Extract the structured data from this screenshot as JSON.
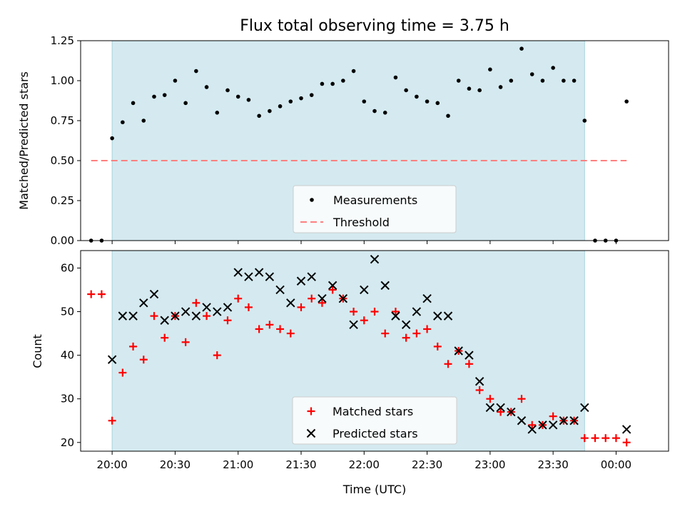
{
  "chart_data": [
    {
      "type": "scatter",
      "title": "Flux total observing time = 3.75 h",
      "xlabel": "",
      "ylabel": "Matched/Predicted stars",
      "xlim": [
        "19:45",
        "00:25"
      ],
      "ylim": [
        0,
        1.25
      ],
      "yticks": [
        "0.00",
        "0.25",
        "0.50",
        "0.75",
        "1.00",
        "1.25"
      ],
      "observing_window": [
        "20:00",
        "23:45"
      ],
      "x": [
        "19:50",
        "19:55",
        "20:00",
        "20:05",
        "20:10",
        "20:15",
        "20:20",
        "20:25",
        "20:30",
        "20:35",
        "20:40",
        "20:45",
        "20:50",
        "20:55",
        "21:00",
        "21:05",
        "21:10",
        "21:15",
        "21:20",
        "21:25",
        "21:30",
        "21:35",
        "21:40",
        "21:45",
        "21:50",
        "21:55",
        "22:00",
        "22:05",
        "22:10",
        "22:15",
        "22:20",
        "22:25",
        "22:30",
        "22:35",
        "22:40",
        "22:45",
        "22:50",
        "22:55",
        "23:00",
        "23:05",
        "23:10",
        "23:15",
        "23:20",
        "23:25",
        "23:30",
        "23:35",
        "23:40",
        "23:45",
        "23:50",
        "23:55",
        "00:00",
        "00:05"
      ],
      "series": [
        {
          "name": "Measurements",
          "color": "#000000",
          "marker": "dot",
          "values": [
            0.0,
            0.0,
            0.64,
            0.74,
            0.86,
            0.75,
            0.9,
            0.91,
            1.0,
            0.86,
            1.06,
            0.96,
            0.8,
            0.94,
            0.9,
            0.88,
            0.78,
            0.81,
            0.84,
            0.87,
            0.89,
            0.91,
            0.98,
            0.98,
            1.0,
            1.06,
            0.87,
            0.81,
            0.8,
            1.02,
            0.94,
            0.9,
            0.87,
            0.86,
            0.78,
            1.0,
            0.95,
            0.94,
            1.07,
            0.96,
            1.0,
            1.2,
            1.04,
            1.0,
            1.08,
            1.0,
            1.0,
            0.75,
            0.0,
            0.0,
            0.0,
            0.87
          ]
        },
        {
          "name": "Threshold",
          "color": "#ff7f7f",
          "style": "dashed",
          "x": [
            "19:50",
            "00:05"
          ],
          "values": [
            0.5,
            0.5
          ]
        }
      ],
      "legend": "bottom-center"
    },
    {
      "type": "scatter",
      "title": "",
      "xlabel": "Time (UTC)",
      "ylabel": "Count",
      "xlim": [
        "19:45",
        "00:25"
      ],
      "ylim": [
        18,
        64
      ],
      "yticks": [
        "20",
        "30",
        "40",
        "50",
        "60"
      ],
      "xticks": [
        "20:00",
        "20:30",
        "21:00",
        "21:30",
        "22:00",
        "22:30",
        "23:00",
        "23:30",
        "00:00"
      ],
      "observing_window": [
        "20:00",
        "23:45"
      ],
      "x": [
        "19:50",
        "19:55",
        "20:00",
        "20:05",
        "20:10",
        "20:15",
        "20:20",
        "20:25",
        "20:30",
        "20:35",
        "20:40",
        "20:45",
        "20:50",
        "20:55",
        "21:00",
        "21:05",
        "21:10",
        "21:15",
        "21:20",
        "21:25",
        "21:30",
        "21:35",
        "21:40",
        "21:45",
        "21:50",
        "21:55",
        "22:00",
        "22:05",
        "22:10",
        "22:15",
        "22:20",
        "22:25",
        "22:30",
        "22:35",
        "22:40",
        "22:45",
        "22:50",
        "22:55",
        "23:00",
        "23:05",
        "23:10",
        "23:15",
        "23:20",
        "23:25",
        "23:30",
        "23:35",
        "23:40",
        "23:45",
        "23:50",
        "23:55",
        "00:00",
        "00:05"
      ],
      "series": [
        {
          "name": "Matched stars",
          "color": "#ff0000",
          "marker": "plus",
          "values": [
            54,
            54,
            25,
            36,
            42,
            39,
            49,
            44,
            49,
            43,
            52,
            49,
            40,
            48,
            53,
            51,
            46,
            47,
            46,
            45,
            51,
            53,
            52,
            55,
            53,
            50,
            48,
            50,
            45,
            50,
            44,
            45,
            46,
            42,
            38,
            41,
            38,
            32,
            30,
            27,
            27,
            30,
            24,
            24,
            26,
            25,
            25,
            21,
            21,
            21,
            21,
            20
          ]
        },
        {
          "name": "Predicted stars",
          "color": "#000000",
          "marker": "x",
          "values": [
            null,
            null,
            39,
            49,
            49,
            52,
            54,
            48,
            49,
            50,
            49,
            51,
            50,
            51,
            59,
            58,
            59,
            58,
            55,
            52,
            57,
            58,
            53,
            56,
            53,
            47,
            55,
            62,
            56,
            49,
            47,
            50,
            53,
            49,
            49,
            41,
            40,
            34,
            28,
            28,
            27,
            25,
            23,
            24,
            24,
            25,
            25,
            28,
            null,
            null,
            null,
            23
          ]
        }
      ],
      "legend": "bottom-center"
    }
  ],
  "colors": {
    "shade": "#d4eaf0",
    "shade_edge": "#a8d3dc",
    "legend_bg": "#ffffff"
  }
}
